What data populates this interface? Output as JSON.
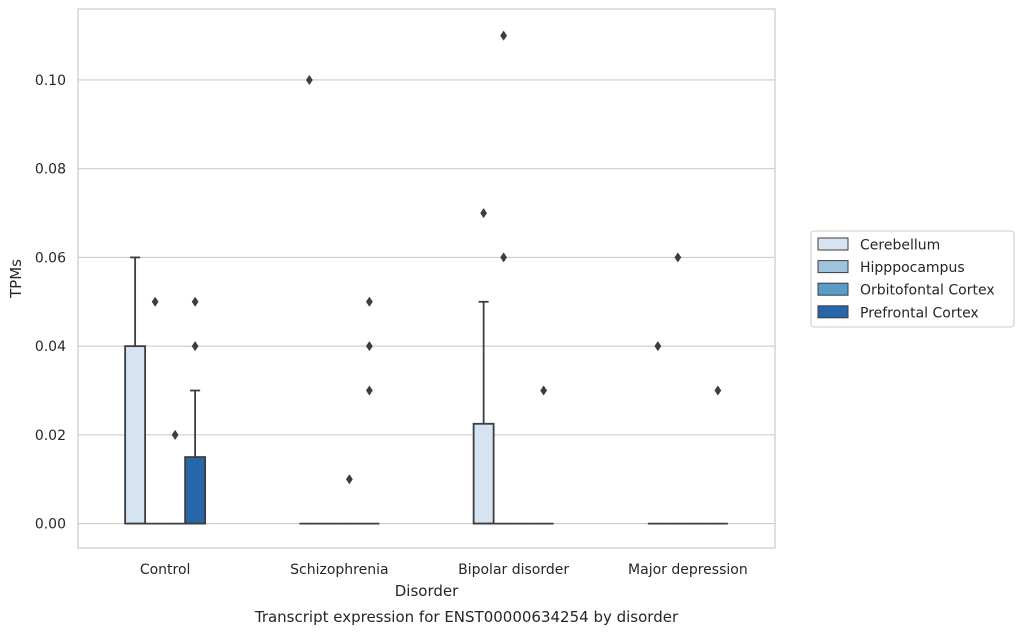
{
  "chart_data": {
    "type": "box",
    "title": "",
    "caption": "Transcript expression for ENST00000634254 by disorder",
    "xlabel": "Disorder",
    "ylabel": "TPMs",
    "ylim": [
      -0.0055,
      0.116
    ],
    "yticks": [
      "0.00",
      "0.02",
      "0.04",
      "0.06",
      "0.08",
      "0.10"
    ],
    "ytick_values": [
      0,
      0.02,
      0.04,
      0.06,
      0.08,
      0.1
    ],
    "grid": true,
    "legend_position": "right",
    "categories": [
      "Control",
      "Schizophrenia",
      "Bipolar disorder",
      "Major depression"
    ],
    "series": [
      {
        "name": "Cerebellum",
        "color": "#d6e4f1",
        "boxes": [
          {
            "q1": 0,
            "median": 0,
            "q3": 0.04,
            "whisker_low": 0,
            "whisker_high": 0.06,
            "outliers": []
          },
          {
            "q1": 0,
            "median": 0,
            "q3": 0,
            "whisker_low": 0,
            "whisker_high": 0,
            "outliers": [
              0.1
            ]
          },
          {
            "q1": 0,
            "median": 0,
            "q3": 0.0225,
            "whisker_low": 0,
            "whisker_high": 0.05,
            "outliers": [
              0.07
            ]
          },
          {
            "q1": 0,
            "median": 0,
            "q3": 0,
            "whisker_low": 0,
            "whisker_high": 0,
            "outliers": [
              0.04
            ]
          }
        ]
      },
      {
        "name": "Hipppocampus",
        "color": "#9ec3dd",
        "boxes": [
          {
            "q1": 0,
            "median": 0,
            "q3": 0,
            "whisker_low": 0,
            "whisker_high": 0,
            "outliers": [
              0.05
            ]
          },
          {
            "q1": 0,
            "median": 0,
            "q3": 0,
            "whisker_low": 0,
            "whisker_high": 0,
            "outliers": []
          },
          {
            "q1": 0,
            "median": 0,
            "q3": 0,
            "whisker_low": 0,
            "whisker_high": 0,
            "outliers": [
              0.11,
              0.06
            ]
          },
          {
            "q1": 0,
            "median": 0,
            "q3": 0,
            "whisker_low": 0,
            "whisker_high": 0,
            "outliers": [
              0.06
            ]
          }
        ]
      },
      {
        "name": "Orbitofontal Cortex",
        "color": "#5a9bc9",
        "boxes": [
          {
            "q1": 0,
            "median": 0,
            "q3": 0,
            "whisker_low": 0,
            "whisker_high": 0,
            "outliers": [
              0.02
            ]
          },
          {
            "q1": 0,
            "median": 0,
            "q3": 0,
            "whisker_low": 0,
            "whisker_high": 0,
            "outliers": [
              0.01
            ]
          },
          {
            "q1": 0,
            "median": 0,
            "q3": 0,
            "whisker_low": 0,
            "whisker_high": 0,
            "outliers": []
          },
          {
            "q1": 0,
            "median": 0,
            "q3": 0,
            "whisker_low": 0,
            "whisker_high": 0,
            "outliers": []
          }
        ]
      },
      {
        "name": "Prefrontal Cortex",
        "color": "#2767a9",
        "boxes": [
          {
            "q1": 0,
            "median": 0,
            "q3": 0.015,
            "whisker_low": 0,
            "whisker_high": 0.03,
            "outliers": [
              0.05,
              0.04
            ]
          },
          {
            "q1": 0,
            "median": 0,
            "q3": 0,
            "whisker_low": 0,
            "whisker_high": 0,
            "outliers": [
              0.05,
              0.04,
              0.03
            ]
          },
          {
            "q1": 0,
            "median": 0,
            "q3": 0,
            "whisker_low": 0,
            "whisker_high": 0,
            "outliers": [
              0.03
            ]
          },
          {
            "q1": 0,
            "median": 0,
            "q3": 0,
            "whisker_low": 0,
            "whisker_high": 0,
            "outliers": [
              0.03
            ]
          }
        ]
      }
    ]
  }
}
